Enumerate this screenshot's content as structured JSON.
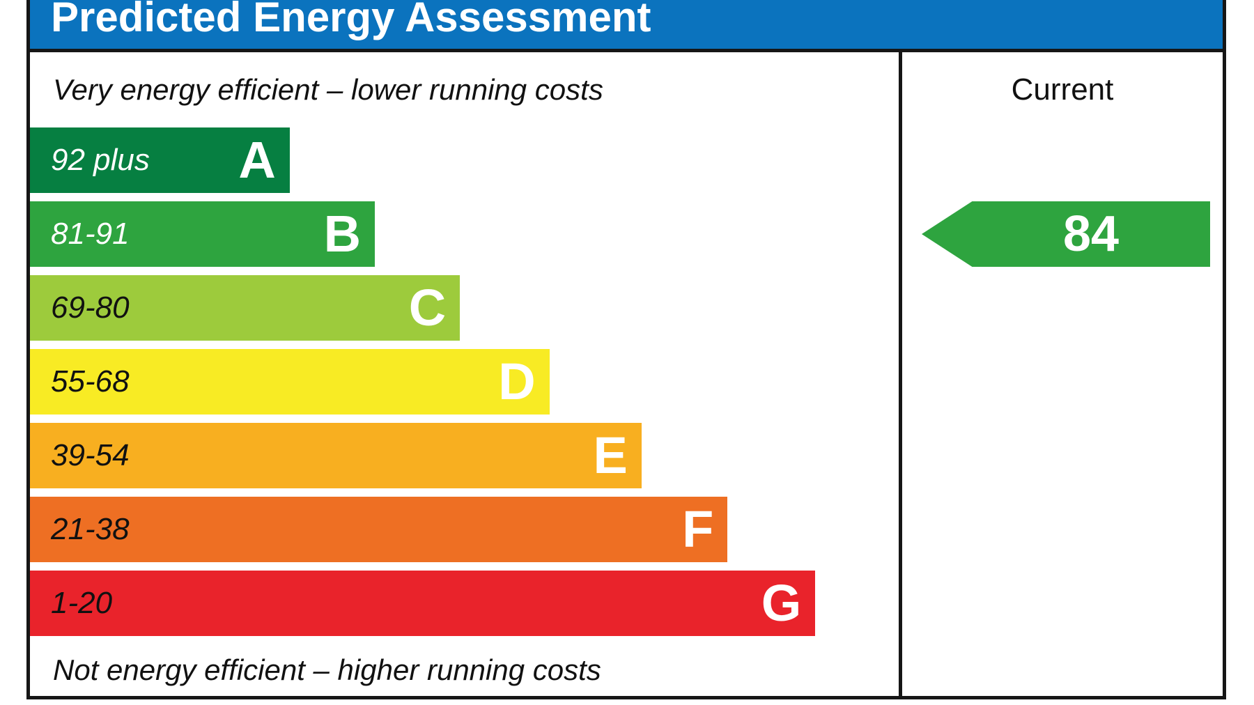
{
  "header": {
    "title": "Predicted Energy Assessment"
  },
  "right_column": {
    "header": "Current"
  },
  "captions": {
    "top": "Very energy efficient – lower running costs",
    "bottom": "Not energy efficient – higher running costs"
  },
  "colors": {
    "header_bg": "#0B73BE",
    "border": "#161616",
    "arrow_green": "#2EA43F"
  },
  "chart_data": {
    "type": "bar",
    "orientation": "horizontal",
    "title": "Predicted Energy Assessment",
    "bands": [
      {
        "grade": "A",
        "range": "92 plus",
        "color": "#067F41",
        "range_text_color": "#FFFFFF",
        "width_pct": 29.9
      },
      {
        "grade": "B",
        "range": "81-91",
        "color": "#2EA43F",
        "range_text_color": "#FFFFFF",
        "width_pct": 39.7
      },
      {
        "grade": "C",
        "range": "69-80",
        "color": "#9DCB3C",
        "range_text_color": "#111111",
        "width_pct": 49.5
      },
      {
        "grade": "D",
        "range": "55-68",
        "color": "#F8EB24",
        "range_text_color": "#111111",
        "width_pct": 59.8
      },
      {
        "grade": "E",
        "range": "39-54",
        "color": "#F8AF20",
        "range_text_color": "#111111",
        "width_pct": 70.4
      },
      {
        "grade": "F",
        "range": "21-38",
        "color": "#EE6F23",
        "range_text_color": "#111111",
        "width_pct": 80.3
      },
      {
        "grade": "G",
        "range": "1-20",
        "color": "#E9232B",
        "range_text_color": "#111111",
        "width_pct": 90.4
      }
    ],
    "current": {
      "value": 84,
      "grade": "B"
    },
    "annotations": {
      "top_left": "Very energy efficient – lower running costs",
      "bottom_left": "Not energy efficient – higher running costs",
      "column_header": "Current"
    },
    "legend_position": "right-column"
  }
}
